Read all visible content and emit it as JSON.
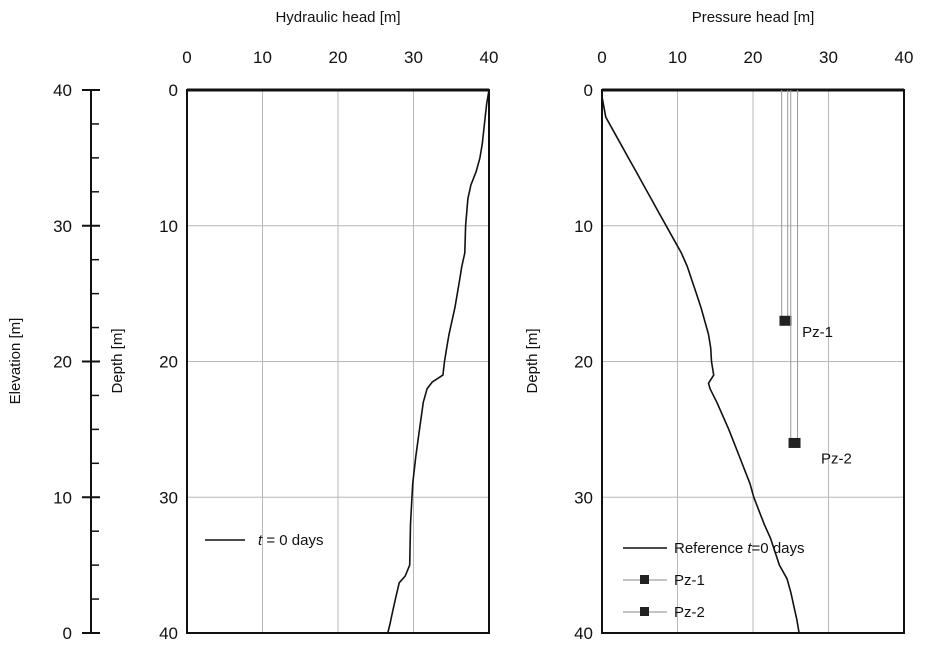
{
  "elevation_axis": {
    "label": "Elevation [m]",
    "ticks": [
      "40",
      "30",
      "20",
      "10",
      "0"
    ],
    "range": [
      0,
      40
    ]
  },
  "chart_data": [
    {
      "type": "line",
      "title": "",
      "xlabel": "Hydraulic head [m]",
      "ylabel": "Depth [m]",
      "xlim": [
        0,
        40
      ],
      "ylim": [
        0,
        40
      ],
      "y_inverted": true,
      "x_axis_position": "top",
      "grid": true,
      "xticks": [
        "0",
        "10",
        "20",
        "30",
        "40"
      ],
      "yticks": [
        "0",
        "10",
        "20",
        "30",
        "40"
      ],
      "legend": {
        "position": "bottom-left",
        "entries": [
          {
            "italic": "t",
            "rest": " = 0 days"
          }
        ]
      },
      "series": [
        {
          "name": "t = 0 days",
          "style": "line",
          "points": [
            [
              40,
              0
            ],
            [
              39.7,
              1
            ],
            [
              39.5,
              2
            ],
            [
              39.3,
              3
            ],
            [
              39.1,
              4
            ],
            [
              38.8,
              5
            ],
            [
              38.3,
              6
            ],
            [
              37.6,
              7
            ],
            [
              37.2,
              8
            ],
            [
              36.9,
              10
            ],
            [
              36.8,
              12
            ],
            [
              36.4,
              13
            ],
            [
              36.1,
              14
            ],
            [
              35.8,
              15
            ],
            [
              35.5,
              16
            ],
            [
              35.1,
              17
            ],
            [
              34.7,
              18
            ],
            [
              34.4,
              19
            ],
            [
              34.1,
              20
            ],
            [
              33.9,
              21
            ],
            [
              32.5,
              21.5
            ],
            [
              31.8,
              22
            ],
            [
              31.3,
              23
            ],
            [
              30.8,
              25
            ],
            [
              30.3,
              27
            ],
            [
              29.9,
              29
            ],
            [
              29.6,
              32
            ],
            [
              29.5,
              35
            ],
            [
              28.9,
              35.8
            ],
            [
              28.1,
              36.3
            ],
            [
              27.6,
              37.5
            ],
            [
              27.2,
              38.5
            ],
            [
              26.9,
              39.3
            ],
            [
              26.6,
              40
            ]
          ]
        }
      ]
    },
    {
      "type": "line",
      "title": "",
      "xlabel": "Pressure head [m]",
      "ylabel": "Depth [m]",
      "xlim": [
        0,
        40
      ],
      "ylim": [
        0,
        40
      ],
      "y_inverted": true,
      "x_axis_position": "top",
      "grid": true,
      "xticks": [
        "0",
        "10",
        "20",
        "30",
        "40"
      ],
      "yticks": [
        "0",
        "10",
        "20",
        "30",
        "40"
      ],
      "legend": {
        "position": "bottom-left",
        "entries": [
          {
            "text": "Reference ",
            "italic": "t",
            "rest": "=0 days"
          },
          {
            "text": "Pz-1"
          },
          {
            "text": "Pz-2"
          }
        ]
      },
      "series": [
        {
          "name": "Reference t=0 days",
          "style": "line",
          "points": [
            [
              0,
              0.5
            ],
            [
              0.5,
              2
            ],
            [
              1.5,
              3
            ],
            [
              2.5,
              4
            ],
            [
              3.5,
              5
            ],
            [
              4.5,
              6
            ],
            [
              5.5,
              7
            ],
            [
              6.5,
              8
            ],
            [
              7.5,
              9
            ],
            [
              8.5,
              10
            ],
            [
              9.5,
              11
            ],
            [
              10.5,
              12
            ],
            [
              11.3,
              13
            ],
            [
              11.9,
              14
            ],
            [
              12.5,
              15
            ],
            [
              13.1,
              16
            ],
            [
              13.6,
              17
            ],
            [
              14.1,
              18
            ],
            [
              14.4,
              19
            ],
            [
              14.5,
              20
            ],
            [
              14.8,
              21
            ],
            [
              14.1,
              21.6
            ],
            [
              14.3,
              22
            ],
            [
              15.2,
              23
            ],
            [
              16.0,
              24
            ],
            [
              16.8,
              25
            ],
            [
              17.5,
              26
            ],
            [
              18.2,
              27
            ],
            [
              18.9,
              28
            ],
            [
              19.6,
              29
            ],
            [
              20.1,
              30
            ],
            [
              20.8,
              31
            ],
            [
              21.5,
              32
            ],
            [
              22.3,
              33
            ],
            [
              22.9,
              34
            ],
            [
              23.5,
              35
            ],
            [
              24.5,
              36
            ],
            [
              25.0,
              37
            ],
            [
              25.4,
              38
            ],
            [
              25.8,
              39
            ],
            [
              26.1,
              40
            ]
          ]
        },
        {
          "name": "Pz-1",
          "style": "marker",
          "points": [
            [
              24.3,
              17
            ]
          ],
          "guide_x": [
            23.8,
            24.6
          ],
          "label": "Pz-1",
          "label_at": [
            26.5,
            18.2
          ]
        },
        {
          "name": "Pz-2",
          "style": "marker",
          "points": [
            [
              25.5,
              26
            ]
          ],
          "guide_x": [
            25.0,
            25.9
          ],
          "label": "Pz-2",
          "label_at": [
            29.0,
            27.5
          ]
        }
      ]
    }
  ]
}
